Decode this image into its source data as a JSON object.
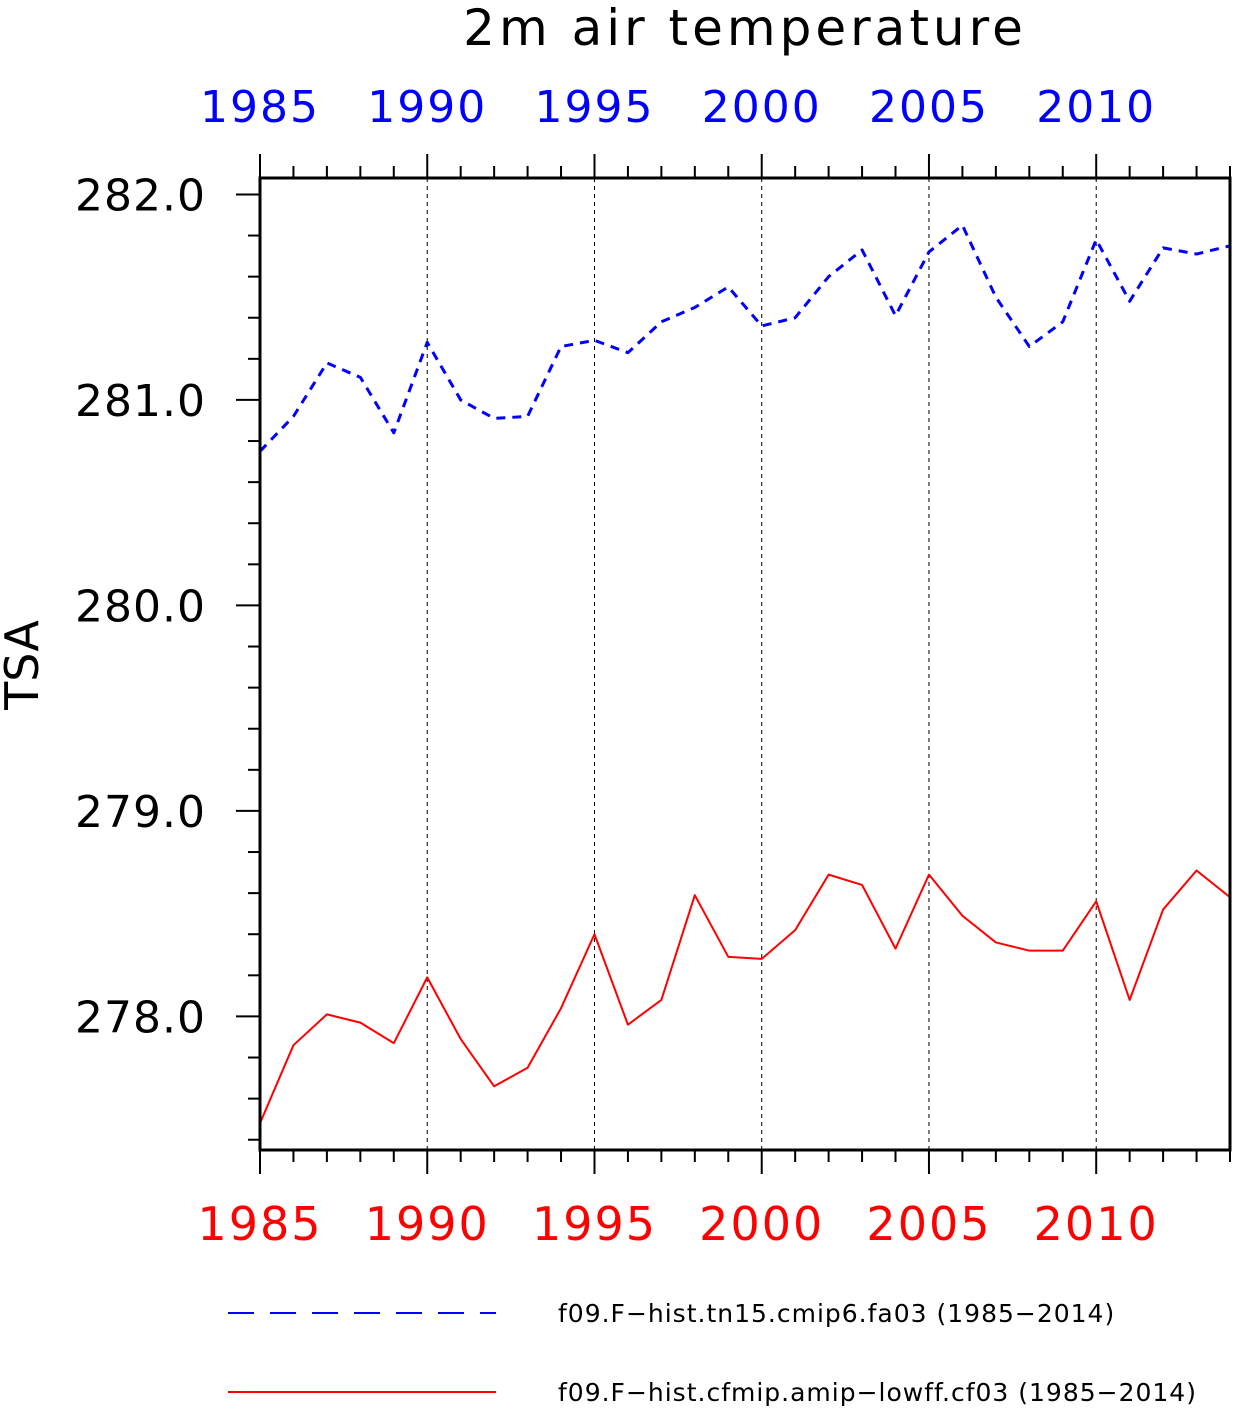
{
  "chart_data": {
    "type": "line",
    "title": "2m air temperature",
    "xlabel": "",
    "ylabel": "TSA",
    "xlim": [
      1985,
      2014
    ],
    "ylim": [
      277.35,
      282.08
    ],
    "x_ticks_labeled": [
      "1985",
      "1990",
      "1995",
      "2000",
      "2005",
      "2010"
    ],
    "x_tick_values": [
      1985,
      1990,
      1995,
      2000,
      2005,
      2010
    ],
    "y_ticks_labeled": [
      "278.0",
      "279.0",
      "280.0",
      "281.0",
      "282.0"
    ],
    "y_tick_values": [
      278.0,
      279.0,
      280.0,
      281.0,
      282.0
    ],
    "grid": "vertical dashed lines at major x ticks",
    "x": [
      1985,
      1986,
      1987,
      1988,
      1989,
      1990,
      1991,
      1992,
      1993,
      1994,
      1995,
      1996,
      1997,
      1998,
      1999,
      2000,
      2001,
      2002,
      2003,
      2004,
      2005,
      2006,
      2007,
      2008,
      2009,
      2010,
      2011,
      2012,
      2013,
      2014
    ],
    "series": [
      {
        "name": "f09.F−hist.tn15.cmip6.fa03 (1985−2014)",
        "color": "#0000ff",
        "dash": "dashed",
        "axis": "top",
        "values": [
          280.75,
          280.92,
          281.18,
          281.11,
          280.84,
          281.28,
          281.0,
          280.91,
          280.92,
          281.26,
          281.29,
          281.23,
          281.38,
          281.45,
          281.55,
          281.36,
          281.4,
          281.6,
          281.73,
          281.41,
          281.72,
          281.85,
          281.5,
          281.26,
          281.38,
          281.78,
          281.48,
          281.74,
          281.71,
          281.75
        ]
      },
      {
        "name": "f09.F−hist.cfmip.amip−lowff.cf03 (1985−2014)",
        "color": "#ff0000",
        "dash": "solid",
        "axis": "bottom",
        "values": [
          277.48,
          277.86,
          278.01,
          277.97,
          277.87,
          278.19,
          277.89,
          277.66,
          277.75,
          278.04,
          278.4,
          277.96,
          278.08,
          278.59,
          278.29,
          278.28,
          278.42,
          278.69,
          278.64,
          278.33,
          278.69,
          278.49,
          278.36,
          278.32,
          278.32,
          278.56,
          278.08,
          278.52,
          278.71,
          278.58
        ]
      }
    ],
    "legend_position": "bottom",
    "top_axis_color": "#0000ff",
    "bottom_axis_color": "#ff0000"
  }
}
